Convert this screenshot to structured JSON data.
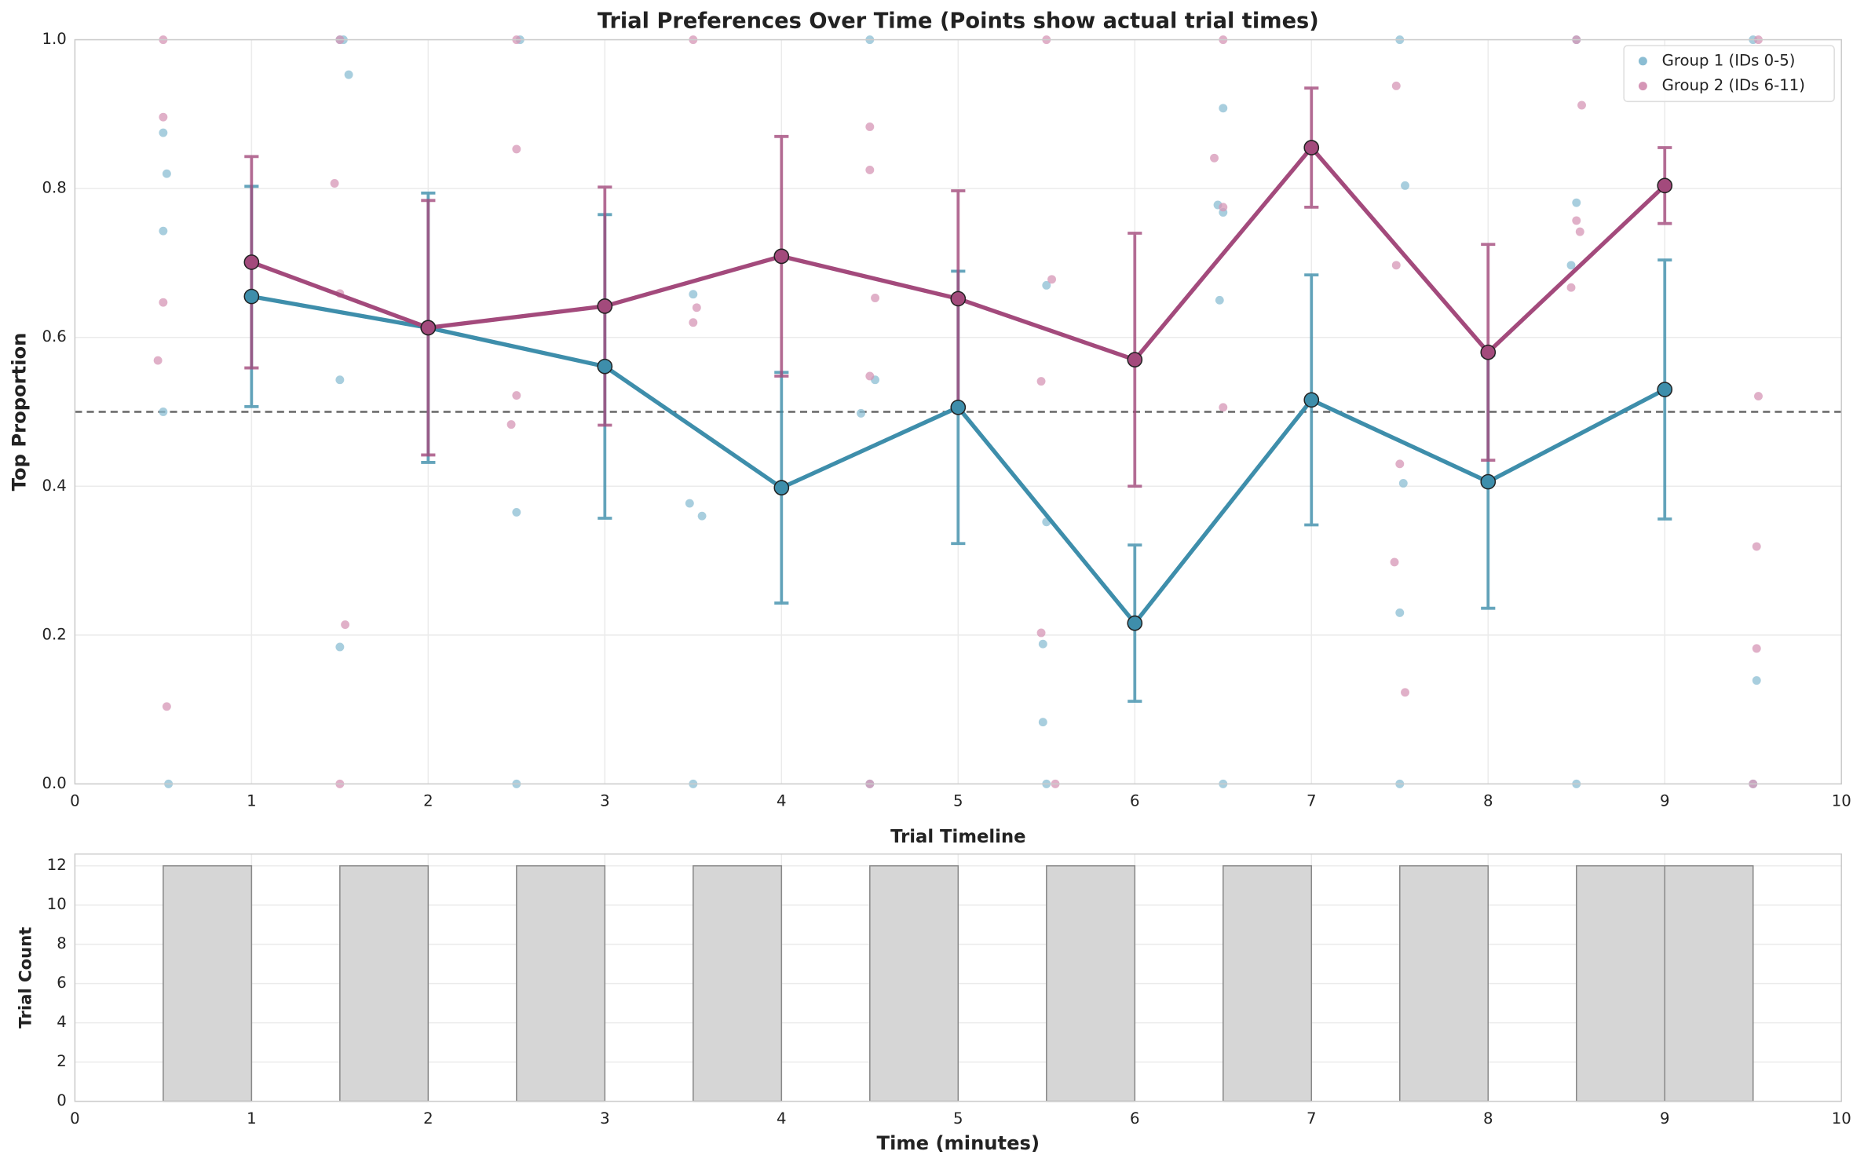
{
  "chart_data": [
    {
      "type": "scatter-line",
      "title": "Trial Preferences Over Time (Points show actual trial times)",
      "y_label": "Top Proportion",
      "xlim": [
        0,
        10
      ],
      "xticks": [
        0,
        1,
        2,
        3,
        4,
        5,
        6,
        7,
        8,
        9,
        10
      ],
      "ylim": [
        0,
        1
      ],
      "yticks": [
        {
          "value": 0,
          "label": "0.0"
        },
        {
          "value": 0.2,
          "label": "0.2"
        },
        {
          "value": 0.4,
          "label": "0.4"
        },
        {
          "value": 0.6,
          "label": "0.6"
        },
        {
          "value": 0.8,
          "label": "0.8"
        },
        {
          "value": 1,
          "label": "1.0"
        }
      ],
      "grid": true,
      "legend": "upper right",
      "reference_line": 0.5,
      "series": [
        {
          "name": "Group 1 (IDs 0-5)",
          "color": "#8bbdd3",
          "x": [
            0.5,
            0.52,
            0.5,
            0.5,
            0.53,
            1.5,
            1.55,
            1.5,
            1.5,
            1.52,
            2.5,
            2.5,
            2.52,
            3.5,
            3.48,
            3.55,
            3.5,
            4.5,
            4.53,
            4.45,
            4.5,
            5.5,
            5.5,
            5.48,
            5.48,
            5.5,
            6.5,
            6.47,
            6.5,
            6.48,
            6.5,
            7.53,
            7.52,
            7.5,
            7.5,
            7.5,
            8.5,
            8.47,
            8.5,
            8.5,
            9.52,
            9.5,
            9.5
          ],
          "values": [
            0.875,
            0.82,
            0.743,
            0.5,
            0,
            1,
            0.953,
            0.543,
            0.184,
            1,
            0.365,
            0,
            1,
            0.658,
            0.377,
            0.36,
            0,
            1,
            0.543,
            0.498,
            0,
            0.67,
            0.352,
            0.188,
            0.083,
            0,
            0.908,
            0.778,
            0.768,
            0.65,
            0,
            0.804,
            0.404,
            0.23,
            0,
            1,
            0.781,
            0.697,
            0,
            1,
            0.139,
            0,
            1
          ]
        },
        {
          "name": "Group 2 (IDs 6-11)",
          "color": "#d596b6",
          "x": [
            0.5,
            0.5,
            0.5,
            0.47,
            0.52,
            1.47,
            1.5,
            1.53,
            1.5,
            1.5,
            2.5,
            2.5,
            2.47,
            2.5,
            3.52,
            3.5,
            3.5,
            4.5,
            4.5,
            4.53,
            4.5,
            4.5,
            5.53,
            5.47,
            5.47,
            5.55,
            5.5,
            6.45,
            6.5,
            6.5,
            6.5,
            7.48,
            7.48,
            7.5,
            7.47,
            7.53,
            8.53,
            8.5,
            8.52,
            8.47,
            8.5,
            9.53,
            9.52,
            9.52,
            9.5,
            9.53
          ],
          "values": [
            1,
            0.896,
            0.647,
            0.569,
            0.104,
            0.807,
            0.659,
            0.214,
            0,
            1,
            0.853,
            0.522,
            0.483,
            1,
            0.64,
            0.62,
            1,
            0.883,
            0.825,
            0.653,
            0.548,
            0,
            0.678,
            0.541,
            0.203,
            0,
            1,
            0.841,
            0.775,
            0.506,
            1,
            0.938,
            0.697,
            0.43,
            0.298,
            0.123,
            0.912,
            0.757,
            0.742,
            0.667,
            1,
            0.521,
            0.319,
            0.182,
            0,
            1
          ]
        }
      ],
      "lines": [
        {
          "color": "#3e8eab",
          "x": [
            1,
            2,
            3,
            4,
            5,
            6,
            7,
            8,
            9
          ],
          "values": [
            0.655,
            0.613,
            0.561,
            0.398,
            0.506,
            0.216,
            0.516,
            0.406,
            0.53
          ],
          "errors": [
            0.148,
            0.181,
            0.204,
            0.155,
            0.183,
            0.105,
            0.168,
            0.17,
            0.174
          ]
        },
        {
          "color": "#a34a7c",
          "x": [
            1,
            2,
            3,
            4,
            5,
            6,
            7,
            8,
            9
          ],
          "values": [
            0.701,
            0.613,
            0.642,
            0.709,
            0.652,
            0.57,
            0.855,
            0.58,
            0.804
          ],
          "errors": [
            0.142,
            0.171,
            0.16,
            0.161,
            0.145,
            0.17,
            0.08,
            0.145,
            0.051
          ]
        }
      ]
    },
    {
      "type": "histogram",
      "title": "Trial Timeline",
      "x_label": "Time (minutes)",
      "y_label": "Trial Count",
      "xlim": [
        0,
        10
      ],
      "xticks": [
        0,
        1,
        2,
        3,
        4,
        5,
        6,
        7,
        8,
        9,
        10
      ],
      "ylim": [
        0,
        12.6
      ],
      "yticks": [
        0,
        2,
        4,
        6,
        8,
        10,
        12
      ],
      "grid": true,
      "color": "#d6d6d6",
      "bins": [
        0.5,
        1,
        1.5,
        2,
        2.5,
        3,
        3.5,
        4,
        4.5,
        5,
        5.5,
        6,
        6.5,
        7,
        7.5,
        8,
        8.5,
        9,
        9.5
      ],
      "values": [
        12,
        0,
        12,
        0,
        12,
        0,
        12,
        0,
        12,
        0,
        12,
        0,
        12,
        0,
        12,
        0,
        12,
        12
      ]
    }
  ]
}
